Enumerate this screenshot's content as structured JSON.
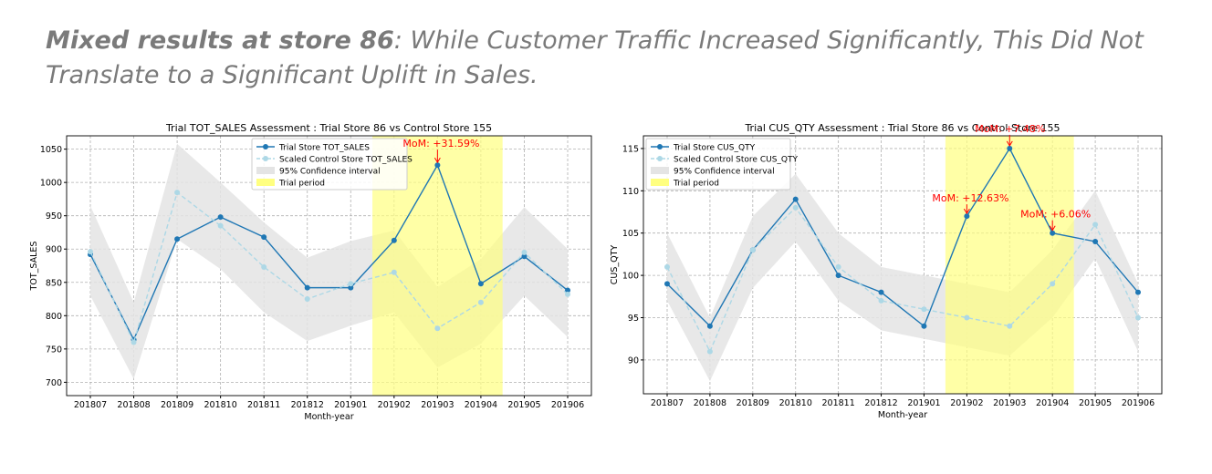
{
  "headline": {
    "bold": "Mixed results at store 86",
    "rest": ": While Customer Traffic Increased Significantly, This Did Not Translate to a Significant Uplift in Sales."
  },
  "chart_data": [
    {
      "type": "line",
      "title": "Trial TOT_SALES Assessment : Trial Store 86 vs Control Store 155",
      "xlabel": "Month-year",
      "ylabel": "TOT_SALES",
      "categories": [
        "201807",
        "201808",
        "201809",
        "201810",
        "201811",
        "201812",
        "201901",
        "201902",
        "201903",
        "201904",
        "201905",
        "201906"
      ],
      "ylim": [
        680,
        1070
      ],
      "yticks": [
        700,
        750,
        800,
        850,
        900,
        950,
        1000,
        1050
      ],
      "grid": true,
      "legend_position": "top-center",
      "series": [
        {
          "name": "Trial Store TOT_SALES",
          "color": "#1f77b4",
          "style": "solid",
          "values": [
            892,
            764,
            915,
            948,
            918,
            842,
            842,
            913,
            1026,
            848,
            889,
            838
          ]
        },
        {
          "name": "Scaled Control Store TOT_SALES",
          "color": "#add8e6",
          "style": "dashed",
          "values": [
            896,
            760,
            985,
            935,
            873,
            825,
            848,
            865,
            781,
            820,
            895,
            832
          ]
        }
      ],
      "band": {
        "name": "95% Confidence interval",
        "color": "#e4e4e4",
        "lower": [
          830,
          705,
          915,
          870,
          805,
          762,
          785,
          805,
          722,
          758,
          830,
          768
        ],
        "upper": [
          965,
          820,
          1058,
          1000,
          940,
          887,
          912,
          928,
          843,
          885,
          963,
          900
        ]
      },
      "trial_period": {
        "name": "Trial period",
        "color": "#ffff80",
        "start": 6.5,
        "end": 9.5
      },
      "annotations": [
        {
          "text": "MoM: +31.59%",
          "x_index": 8,
          "y": 1026,
          "dx": -38,
          "dy": -20
        }
      ]
    },
    {
      "type": "line",
      "title": "Trial CUS_QTY Assessment : Trial Store 86 vs Control Store 155",
      "xlabel": "Month-year",
      "ylabel": "CUS_QTY",
      "categories": [
        "201807",
        "201808",
        "201809",
        "201810",
        "201811",
        "201812",
        "201901",
        "201902",
        "201903",
        "201904",
        "201905",
        "201906"
      ],
      "ylim": [
        86,
        116.5
      ],
      "yticks": [
        90,
        95,
        100,
        105,
        110,
        115
      ],
      "grid": true,
      "legend_position": "top-left",
      "series": [
        {
          "name": "Trial Store CUS_QTY",
          "color": "#1f77b4",
          "style": "solid",
          "values": [
            99,
            94,
            103,
            109,
            100,
            98,
            94,
            107,
            115,
            105,
            104,
            98
          ]
        },
        {
          "name": "Scaled Control Store CUS_QTY",
          "color": "#add8e6",
          "style": "dashed",
          "values": [
            101,
            91,
            103,
            108,
            101,
            97,
            96,
            95,
            94,
            99,
            106,
            95
          ]
        }
      ],
      "band": {
        "name": "95% Confidence interval",
        "color": "#e4e4e4",
        "lower": [
          97,
          87.5,
          98.5,
          104,
          97,
          93.5,
          92.5,
          91.5,
          90.5,
          95,
          102,
          91
        ],
        "upper": [
          105,
          95,
          107,
          112,
          105,
          101,
          100,
          99,
          98,
          103,
          110,
          99
        ]
      },
      "trial_period": {
        "name": "Trial period",
        "color": "#ffff80",
        "start": 6.5,
        "end": 9.5
      },
      "annotations": [
        {
          "text": "MoM: +12.63%",
          "x_index": 7,
          "y": 107,
          "dx": -38,
          "dy": -16
        },
        {
          "text": "MoM: +7.48%",
          "x_index": 8,
          "y": 115,
          "dx": -38,
          "dy": -18
        },
        {
          "text": "MoM: +6.06%",
          "x_index": 9,
          "y": 105,
          "dx": -35,
          "dy": -17
        }
      ]
    }
  ]
}
